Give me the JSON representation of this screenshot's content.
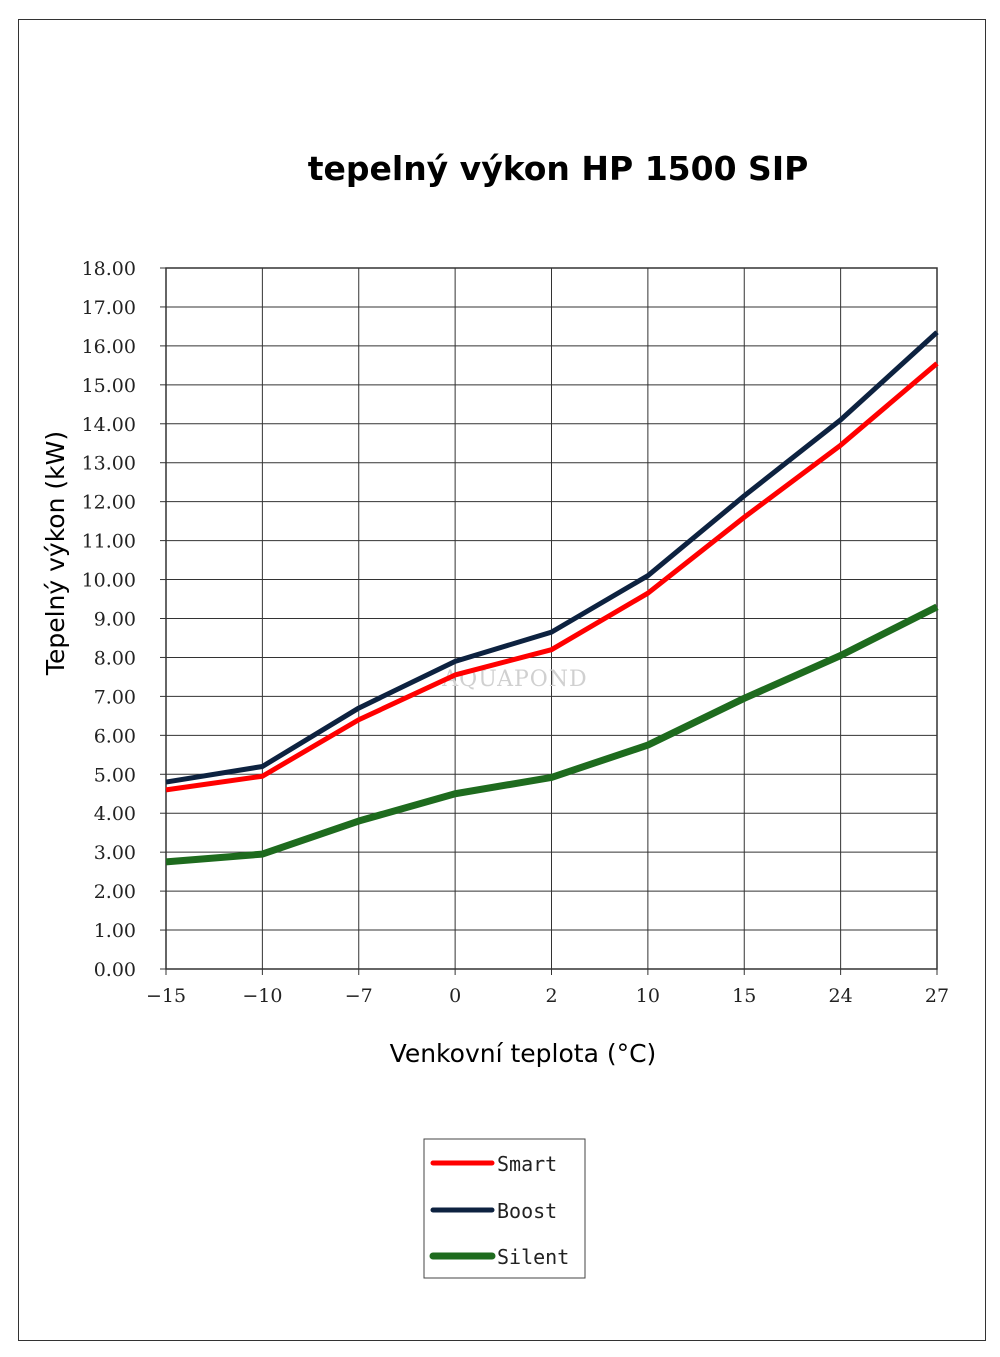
{
  "chart_data": {
    "type": "line",
    "title": "tepelný výkon HP 1500 SIP",
    "xlabel": "Venkovní teplota (°C)",
    "ylabel": "Tepelný výkon (kW)",
    "categories": [
      "-15",
      "-10",
      "-7",
      "0",
      "2",
      "10",
      "15",
      "24",
      "27"
    ],
    "yticks": [
      "0.00",
      "1.00",
      "2.00",
      "3.00",
      "4.00",
      "5.00",
      "6.00",
      "7.00",
      "8.00",
      "9.00",
      "10.00",
      "11.00",
      "12.00",
      "13.00",
      "14.00",
      "15.00",
      "16.00",
      "17.00",
      "18.00"
    ],
    "ylim": [
      0,
      18
    ],
    "grid": true,
    "legend_position": "bottom-center",
    "series": [
      {
        "name": "Smart",
        "color": "#ff0000",
        "values": [
          4.6,
          4.95,
          6.4,
          7.55,
          8.2,
          9.65,
          11.6,
          13.45,
          15.55
        ]
      },
      {
        "name": "Boost",
        "color": "#0d2240",
        "values": [
          4.8,
          5.2,
          6.7,
          7.9,
          8.65,
          10.1,
          12.15,
          14.1,
          16.35
        ]
      },
      {
        "name": "Silent",
        "color": "#1e6b1e",
        "values": [
          2.75,
          2.95,
          3.8,
          4.5,
          4.92,
          5.75,
          6.95,
          8.05,
          9.3
        ]
      }
    ]
  },
  "watermark": "AQUAPOND"
}
